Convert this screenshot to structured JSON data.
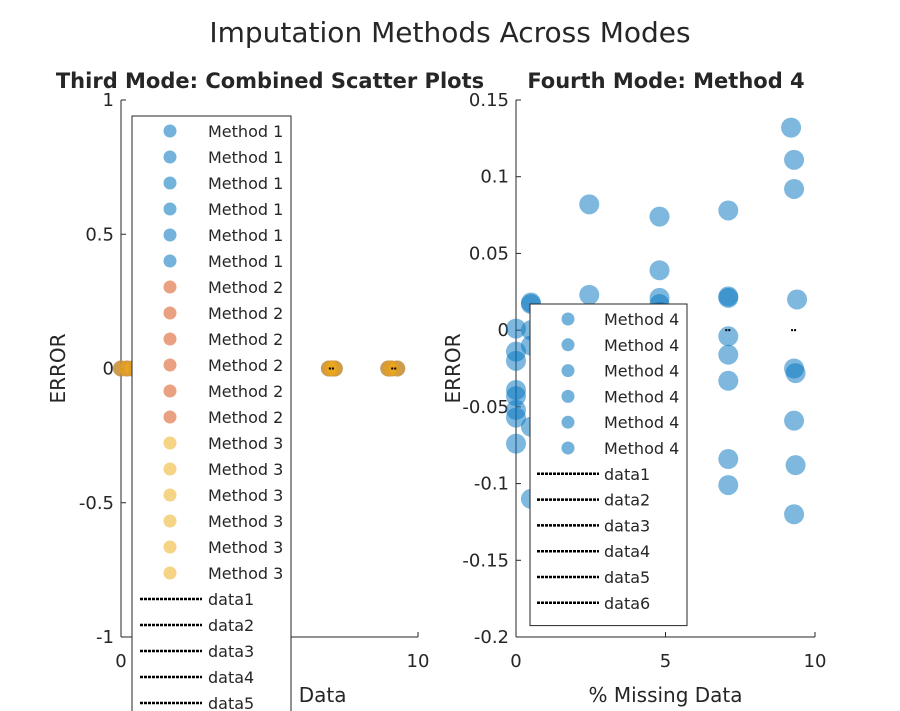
{
  "figure_title": "Imputation Methods Across Modes",
  "chart_data": [
    {
      "type": "scatter",
      "title": "Third Mode: Combined Scatter Plots",
      "xlabel": "% Missing Data",
      "ylabel": "ERROR",
      "xlim": [
        0,
        10
      ],
      "ylim": [
        -1,
        1
      ],
      "xticks": [
        "0",
        "5",
        "10"
      ],
      "yticks": [
        "-1",
        "-0.5",
        "0",
        "0.5",
        "1"
      ],
      "colors": {
        "Method 1": "#0072BD",
        "Method 2": "#D95319",
        "Method 3": "#EDB120"
      },
      "series": [
        {
          "name": "Method 1",
          "x": [
            0,
            0.2,
            0.4,
            0.6,
            0.9,
            7.0,
            7.1,
            7.2,
            9.0,
            9.1,
            9.3
          ],
          "y": [
            0,
            0,
            0,
            0,
            0,
            0,
            0,
            0,
            0,
            0,
            0
          ]
        },
        {
          "name": "Method 2",
          "x": [
            0,
            0.2,
            0.4,
            0.6,
            0.9,
            7.0,
            7.1,
            7.2,
            9.0,
            9.1,
            9.3
          ],
          "y": [
            0,
            0,
            0,
            0,
            0,
            0,
            0,
            0,
            0,
            0,
            0
          ]
        },
        {
          "name": "Method 3",
          "x": [
            0,
            0.2,
            0.4,
            0.6,
            0.9,
            7.0,
            7.1,
            7.2,
            9.0,
            9.1,
            9.3
          ],
          "y": [
            0,
            0,
            0,
            0,
            0,
            0,
            0,
            0,
            0,
            0,
            0
          ]
        }
      ],
      "line_points": [
        {
          "x": 7.1,
          "y": 0
        },
        {
          "x": 9.2,
          "y": 0
        }
      ],
      "legend": {
        "placement": "center",
        "entries": [
          "Method 1",
          "Method 1",
          "Method 1",
          "Method 1",
          "Method 1",
          "Method 1",
          "Method 2",
          "Method 2",
          "Method 2",
          "Method 2",
          "Method 2",
          "Method 2",
          "Method 3",
          "Method 3",
          "Method 3",
          "Method 3",
          "Method 3",
          "Method 3",
          "data1",
          "data2",
          "data3",
          "data4",
          "data5"
        ]
      }
    },
    {
      "type": "scatter",
      "title": "Fourth Mode: Method 4",
      "xlabel": "% Missing Data",
      "ylabel": "ERROR",
      "xlim": [
        0,
        10
      ],
      "ylim": [
        -0.2,
        0.15
      ],
      "xticks": [
        "0",
        "5",
        "10"
      ],
      "yticks": [
        "-0.2",
        "-0.15",
        "-0.1",
        "-0.05",
        "0",
        "0.05",
        "0.1",
        "0.15"
      ],
      "colors": {
        "Method 4": "#0072BD"
      },
      "series": [
        {
          "name": "Method 4",
          "x": [
            0.0,
            0.0,
            0.0,
            0.0,
            0.0,
            0.0,
            0.0,
            0.0,
            0.5,
            0.5,
            0.5,
            0.5,
            0.5,
            0.5,
            2.45,
            2.45,
            2.45,
            4.8,
            4.8,
            4.8,
            4.8,
            4.8,
            7.1,
            7.1,
            7.1,
            7.1,
            7.1,
            7.1,
            7.1,
            7.1,
            9.2,
            9.3,
            9.3,
            9.4,
            9.3,
            9.35,
            9.3,
            9.35,
            9.3
          ],
          "y": [
            0.001,
            -0.014,
            -0.02,
            -0.039,
            -0.043,
            -0.052,
            -0.057,
            -0.074,
            0.017,
            0.0,
            -0.01,
            -0.063,
            -0.11,
            0.018,
            0.082,
            0.023,
            0.0,
            0.074,
            0.039,
            0.021,
            0.017,
            0.012,
            0.078,
            0.021,
            0.022,
            -0.004,
            -0.016,
            -0.033,
            -0.084,
            -0.101,
            0.132,
            0.111,
            0.092,
            0.02,
            -0.025,
            -0.028,
            -0.059,
            -0.088,
            -0.12
          ]
        }
      ],
      "line_points": [
        {
          "x": 7.1,
          "y": 0
        },
        {
          "x": 9.3,
          "y": 0
        }
      ],
      "legend": {
        "placement": "bottom-center",
        "entries": [
          "Method 4",
          "Method 4",
          "Method 4",
          "Method 4",
          "Method 4",
          "Method 4",
          "data1",
          "data2",
          "data3",
          "data4",
          "data5",
          "data6"
        ]
      }
    }
  ]
}
